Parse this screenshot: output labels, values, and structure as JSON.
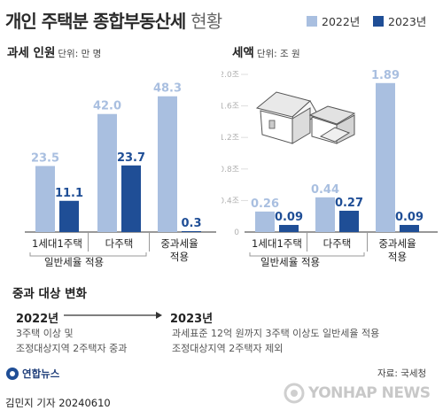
{
  "header": {
    "title": "개인 주택분 종합부동산세",
    "title_suffix": "현황",
    "legend": [
      {
        "label": "2022년",
        "color": "#a9bfe0"
      },
      {
        "label": "2023년",
        "color": "#1f4e96"
      }
    ]
  },
  "colors": {
    "y2022": "#a9bfe0",
    "y2023": "#1f4e96",
    "axis_tick": "#b0b0b0",
    "group_line": "#999999"
  },
  "chart_data": [
    {
      "type": "bar",
      "title": "과세 인원",
      "unit": "단위: 만 명",
      "categories": [
        "1세대1주택",
        "다주택",
        "중과세율 적용"
      ],
      "category_lines": [
        [
          "1세대1주택"
        ],
        [
          "다주택"
        ],
        [
          "중과세율",
          "적용"
        ]
      ],
      "series": [
        {
          "name": "2022년",
          "values": [
            23.5,
            42.0,
            48.3
          ],
          "labels": [
            "23.5",
            "42.0",
            "48.3"
          ]
        },
        {
          "name": "2023년",
          "values": [
            11.1,
            23.7,
            0.3
          ],
          "labels": [
            "11.1",
            "23.7",
            "0.3"
          ]
        }
      ],
      "ylim": [
        0,
        52
      ],
      "group_label": "일반세율 적용"
    },
    {
      "type": "bar",
      "title": "세액",
      "unit": "단위: 조 원",
      "categories": [
        "1세대1주택",
        "다주택",
        "중과세율 적용"
      ],
      "category_lines": [
        [
          "1세대1주택"
        ],
        [
          "다주택"
        ],
        [
          "중과세율",
          "적용"
        ]
      ],
      "series": [
        {
          "name": "2022년",
          "values": [
            0.26,
            0.44,
            1.89
          ],
          "labels": [
            "0.26",
            "0.44",
            "1.89"
          ]
        },
        {
          "name": "2023년",
          "values": [
            0.09,
            0.27,
            0.09
          ],
          "labels": [
            "0.09",
            "0.27",
            "0.09"
          ]
        }
      ],
      "ylim": [
        0,
        2.0
      ],
      "yticks": [
        "0",
        "0.4조",
        "0.8조",
        "1.2조",
        "1.6조",
        "2.0조"
      ],
      "group_label": "일반세율 적용"
    }
  ],
  "changes": {
    "title": "중과 대상 변화",
    "before_year": "2022년",
    "before_lines": [
      "3주택 이상 및",
      "조정대상지역 2주택자 중과"
    ],
    "after_year": "2023년",
    "after_lines": [
      "과세표준 12억 원까지 3주택 이상도 일반세율 적용",
      "조정대상지역 2주택자 제외"
    ]
  },
  "source": "자료: 국세청",
  "footer": {
    "brand": "연합뉴스",
    "credit": "김민지 기자  20240610",
    "watermark": "YONHAP NEWS"
  }
}
